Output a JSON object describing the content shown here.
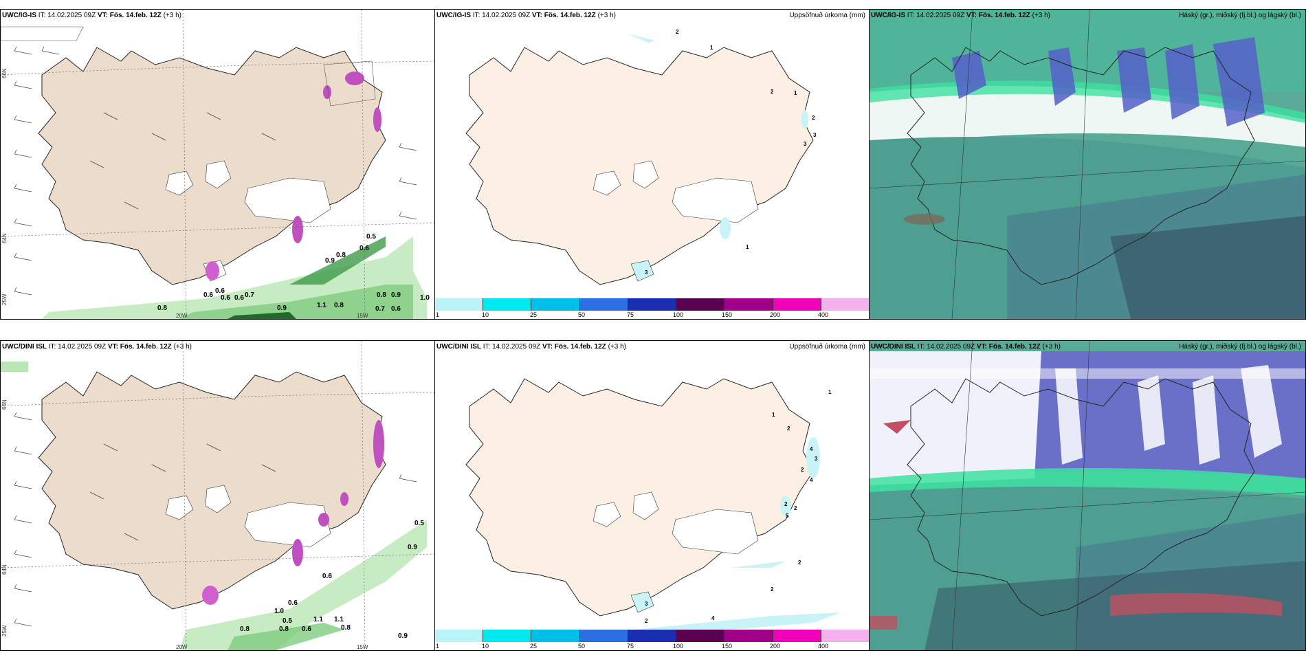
{
  "panels": {
    "top_left": {
      "model": "UWC/IG-IS",
      "it": "IT: 14.02.2025 09Z",
      "vt": "VT: Fös. 14.feb. 12Z",
      "lead": "(+3 h)"
    },
    "top_mid": {
      "model": "UWC/IG-IS",
      "it": "IT: 14.02.2025 09Z",
      "vt": "VT: Fös. 14.feb. 12Z",
      "lead": "(+3 h)",
      "right": "Uppsöfnuð úrkoma (mm)"
    },
    "top_right": {
      "model": "UWC/IG-IS",
      "it": "IT: 14.02.2025 09Z",
      "vt": "VT: Fös. 14.feb. 12Z",
      "lead": "(+3 h)",
      "right": "Háský (gr.), miðský (fj.bl.) og lágský (bl.)"
    },
    "bot_left": {
      "model": "UWC/DINI ISL",
      "it": "IT: 14.02.2025 09Z",
      "vt": "VT: Fös. 14.feb. 12Z",
      "lead": "(+3 h)"
    },
    "bot_mid": {
      "model": "UWC/DINI ISL",
      "it": "IT: 14.02.2025 09Z",
      "vt": "VT: Fös. 14.feb. 12Z",
      "lead": "(+3 h)",
      "right": "Uppsöfnuð úrkoma (mm)"
    },
    "bot_right": {
      "model": "UWC/DINI ISL",
      "it": "IT: 14.02.2025 09Z",
      "vt": "VT: Fös. 14.feb. 12Z",
      "lead": "(+3 h)",
      "right": "Háský (gr.), miðský (fj.bl.) og lágský (bl.)"
    }
  },
  "axes": {
    "lat66": "66N",
    "lat64": "64N",
    "lon20": "20W",
    "lon15": "15W",
    "lon25": "25W"
  },
  "legend": {
    "ticks": [
      "1",
      "10",
      "25",
      "50",
      "75",
      "100",
      "150",
      "200",
      "400"
    ],
    "colors": [
      "#b8f4f8",
      "#00e8f0",
      "#00bfe8",
      "#2b6fe0",
      "#1a2fb0",
      "#5a0050",
      "#a0008a",
      "#f000b8",
      "#f5b0ee"
    ]
  },
  "top_left_labels": [
    "0.5",
    "0.6",
    "0.8",
    "0.9",
    "0.6",
    "0.6",
    "0.6",
    "0.6",
    "0.7",
    "0.8",
    "0.9",
    "1.1",
    "0.8",
    "0.8",
    "0.9",
    "0.7",
    "0.6",
    "1.0"
  ],
  "top_mid_labels": [
    "2",
    "1",
    "2",
    "1",
    "2",
    "3",
    "3",
    "1",
    "3"
  ],
  "bot_left_labels": [
    "0.5",
    "0.9",
    "0.6",
    "0.6",
    "1.0",
    "0.5",
    "0.8",
    "0.8",
    "0.6",
    "1.1",
    "1.1",
    "0.8",
    "0.9"
  ],
  "bot_mid_labels": [
    "1",
    "1",
    "2",
    "4",
    "3",
    "2",
    "4",
    "2",
    "5",
    "2",
    "2",
    "2",
    "4",
    "2",
    "3"
  ]
}
